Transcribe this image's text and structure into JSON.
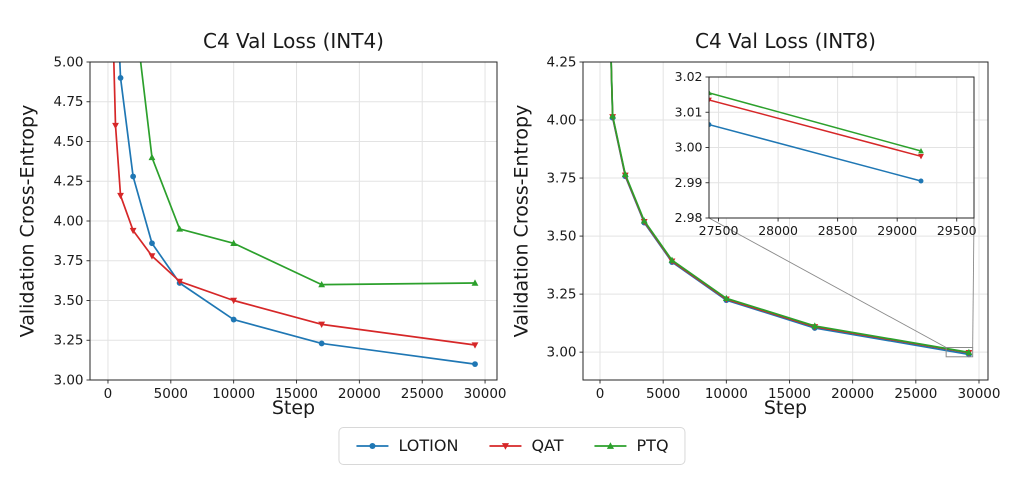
{
  "legend": {
    "items": [
      {
        "label": "LOTION",
        "color": "#1f77b4",
        "marker": "circle"
      },
      {
        "label": "QAT",
        "color": "#d62728",
        "marker": "triangle-down"
      },
      {
        "label": "PTQ",
        "color": "#2ca02c",
        "marker": "triangle-up"
      }
    ],
    "position": "lower center"
  },
  "chart_data": [
    {
      "id": "int4",
      "type": "line",
      "title": "C4 Val Loss (INT4)",
      "xlabel": "Step",
      "ylabel": "Validation Cross-Entropy",
      "xlim": [
        -1430,
        30950
      ],
      "ylim": [
        3.0,
        5.0
      ],
      "xticks": [
        0,
        5000,
        10000,
        15000,
        20000,
        25000,
        30000
      ],
      "yticks": [
        3.0,
        3.25,
        3.5,
        3.75,
        4.0,
        4.25,
        4.5,
        4.75,
        5.0
      ],
      "ytick_decimals": 2,
      "grid": true,
      "series": [
        {
          "name": "LOTION",
          "color": "#1f77b4",
          "marker": "circle",
          "x": [
            600,
            1000,
            2000,
            3500,
            5700,
            10000,
            17000,
            29200
          ],
          "y": [
            5.6,
            4.9,
            4.28,
            3.86,
            3.61,
            3.38,
            3.23,
            3.1
          ]
        },
        {
          "name": "QAT",
          "color": "#d62728",
          "marker": "triangle-down",
          "x": [
            300,
            600,
            1000,
            2000,
            3500,
            5700,
            10000,
            17000,
            29200
          ],
          "y": [
            5.5,
            4.6,
            4.16,
            3.94,
            3.78,
            3.62,
            3.5,
            3.35,
            3.22
          ]
        },
        {
          "name": "PTQ",
          "color": "#2ca02c",
          "marker": "triangle-up",
          "x": [
            2000,
            3500,
            5700,
            10000,
            17000,
            29200
          ],
          "y": [
            5.4,
            4.4,
            3.95,
            3.86,
            3.6,
            3.61
          ]
        }
      ]
    },
    {
      "id": "int8",
      "type": "line",
      "title": "C4 Val Loss (INT8)",
      "xlabel": "Step",
      "ylabel": "Validation Cross-Entropy",
      "xlim": [
        -1346,
        30713
      ],
      "ylim": [
        2.88,
        4.25
      ],
      "xticks": [
        0,
        5000,
        10000,
        15000,
        20000,
        25000,
        30000
      ],
      "yticks": [
        3.0,
        3.25,
        3.5,
        3.75,
        4.0,
        4.25
      ],
      "ytick_decimals": 2,
      "grid": true,
      "series": [
        {
          "name": "LOTION",
          "color": "#1f77b4",
          "marker": "circle",
          "x": [
            700,
            1000,
            2000,
            3500,
            5700,
            10000,
            17000,
            29200
          ],
          "y": [
            4.6,
            4.01,
            3.758,
            3.558,
            3.388,
            3.224,
            3.104,
            2.9905
          ]
        },
        {
          "name": "QAT",
          "color": "#d62728",
          "marker": "triangle-down",
          "x": [
            700,
            1000,
            2000,
            3500,
            5700,
            10000,
            17000,
            29200
          ],
          "y": [
            4.61,
            4.014,
            3.762,
            3.562,
            3.392,
            3.228,
            3.109,
            2.9975
          ]
        },
        {
          "name": "PTQ",
          "color": "#2ca02c",
          "marker": "triangle-up",
          "x": [
            700,
            1000,
            2000,
            3500,
            5700,
            10000,
            17000,
            29200
          ],
          "y": [
            4.62,
            4.018,
            3.766,
            3.566,
            3.396,
            3.232,
            3.113,
            2.999
          ]
        }
      ],
      "indicator_rect": {
        "x": [
          27400,
          29500
        ],
        "y": [
          2.98,
          3.02
        ]
      }
    },
    {
      "id": "int8-inset",
      "type": "line",
      "inset_of": "int8",
      "title": "",
      "xlabel": "",
      "ylabel": "",
      "xlim": [
        27420,
        29645
      ],
      "ylim": [
        2.98,
        3.02
      ],
      "xticks": [
        27500,
        28000,
        28500,
        29000,
        29500
      ],
      "yticks": [
        2.98,
        2.99,
        3.0,
        3.01,
        3.02
      ],
      "ytick_decimals": 2,
      "grid": true,
      "series": [
        {
          "name": "LOTION",
          "color": "#1f77b4",
          "marker": "circle",
          "x": [
            27420,
            29200
          ],
          "y": [
            3.0065,
            2.9905
          ]
        },
        {
          "name": "QAT",
          "color": "#d62728",
          "marker": "triangle-down",
          "x": [
            27420,
            29200
          ],
          "y": [
            3.0135,
            2.9975
          ]
        },
        {
          "name": "PTQ",
          "color": "#2ca02c",
          "marker": "triangle-up",
          "x": [
            27420,
            29200
          ],
          "y": [
            3.0155,
            2.999
          ]
        }
      ]
    }
  ]
}
